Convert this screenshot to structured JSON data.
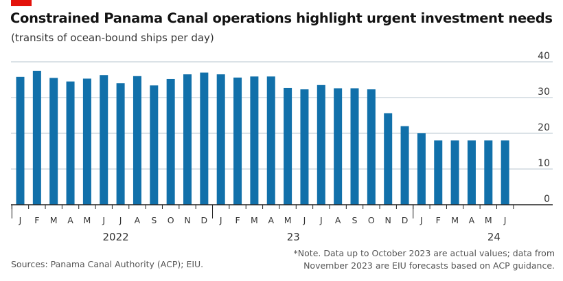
{
  "header": {
    "title": "Constrained Panama Canal operations highlight urgent investment needs",
    "subtitle": "(transits of ocean-bound ships per day)"
  },
  "footer": {
    "source": "Sources: Panama Canal Authority (ACP); EIU.",
    "note": "*Note. Data up to October 2023 are actual values; data from November 2023 are EIU forecasts based on ACP guidance."
  },
  "colors": {
    "bar": "#1170aa",
    "grid": "#b7c6cf",
    "axis": "#222222",
    "brand": "#e3120b"
  },
  "chart_data": {
    "type": "bar",
    "title": "Constrained Panama Canal operations highlight urgent investment needs",
    "subtitle": "(transits of ocean-bound ships per day)",
    "categories": [
      "J",
      "F",
      "M",
      "A",
      "M",
      "J",
      "J",
      "A",
      "S",
      "O",
      "N",
      "D",
      "J",
      "F",
      "M",
      "A",
      "M",
      "J",
      "J",
      "A",
      "S",
      "O",
      "N",
      "D",
      "J",
      "F",
      "M",
      "A",
      "M",
      "J"
    ],
    "year_labels": [
      {
        "label": "2022",
        "start_index": 0
      },
      {
        "label": "23",
        "start_index": 12
      },
      {
        "label": "24",
        "start_index": 24
      }
    ],
    "values": [
      35.8,
      37.5,
      35.5,
      34.5,
      35.3,
      36.3,
      34.0,
      36.0,
      33.4,
      35.2,
      36.5,
      37.0,
      36.5,
      35.6,
      35.9,
      35.9,
      32.7,
      32.3,
      33.5,
      32.6,
      32.6,
      32.3,
      25.6,
      22.0,
      20.0,
      18.0,
      18.0,
      18.0,
      18.0,
      18.0
    ],
    "ylim": [
      0,
      40
    ],
    "yticks": [
      0,
      10,
      20,
      30,
      40
    ],
    "y_axis_position": "right",
    "grid": true
  }
}
